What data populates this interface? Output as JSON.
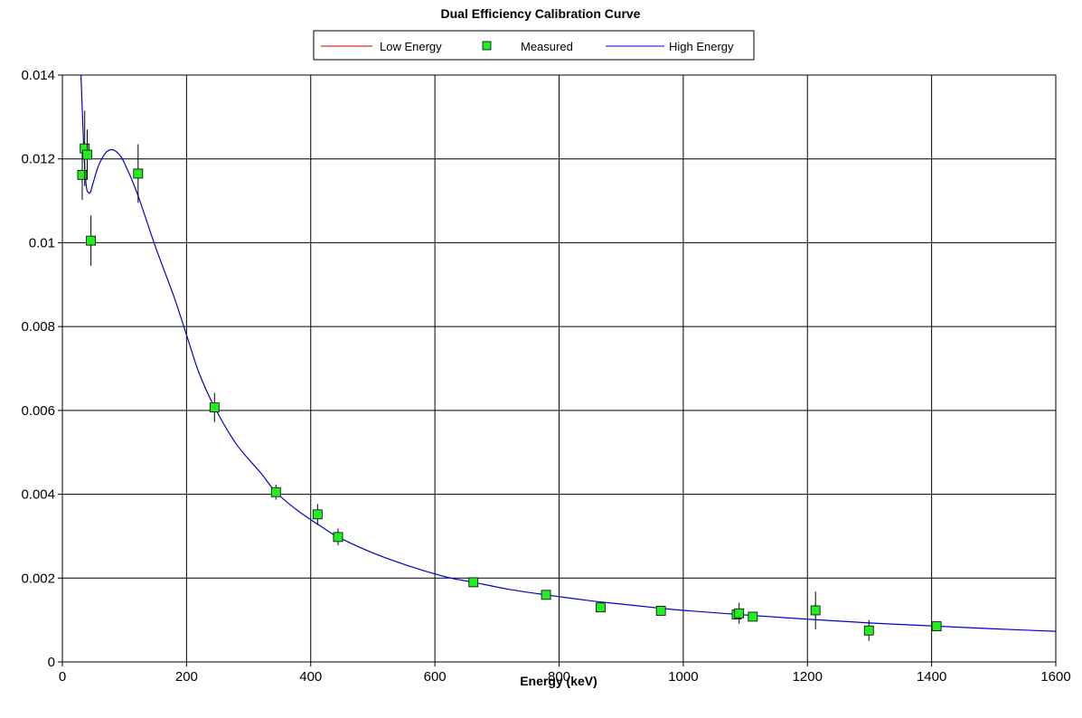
{
  "chart_data": {
    "type": "scatter",
    "title": "Dual Efficiency Calibration Curve",
    "xlabel": "Energy (keV)",
    "ylabel": "",
    "xlim": [
      0,
      1600
    ],
    "ylim": [
      0,
      0.014
    ],
    "x_ticks": [
      0,
      200,
      400,
      600,
      800,
      1000,
      1200,
      1400,
      1600
    ],
    "x_tick_labels": [
      "0",
      "200",
      "400",
      "600",
      "800",
      "1000",
      "1200",
      "1400",
      "1600"
    ],
    "y_ticks": [
      0,
      0.002,
      0.004,
      0.006,
      0.008,
      0.01,
      0.012,
      0.014
    ],
    "y_tick_labels": [
      "0",
      "0.002",
      "0.004",
      "0.006",
      "0.008",
      "0.01",
      "0.012",
      "0.014"
    ],
    "grid": true,
    "legend": {
      "position": "top-center",
      "entries": [
        {
          "label": "Low Energy",
          "kind": "line",
          "color": "#cc0000"
        },
        {
          "label": "Measured",
          "kind": "marker",
          "color": "#00ff00"
        },
        {
          "label": "High Energy",
          "kind": "line",
          "color": "#0000cc"
        }
      ]
    },
    "series": [
      {
        "name": "Measured",
        "kind": "points",
        "marker_color": "#22ee22",
        "points": [
          {
            "x": 32,
            "y": 0.01162,
            "err": 0.0006
          },
          {
            "x": 36,
            "y": 0.01225,
            "err": 0.0009
          },
          {
            "x": 40,
            "y": 0.0121,
            "err": 0.0006
          },
          {
            "x": 46,
            "y": 0.01005,
            "err": 0.0006
          },
          {
            "x": 122,
            "y": 0.01165,
            "err": 0.0007
          },
          {
            "x": 245,
            "y": 0.00607,
            "err": 0.00035
          },
          {
            "x": 344,
            "y": 0.00405,
            "err": 0.00018
          },
          {
            "x": 411,
            "y": 0.00352,
            "err": 0.00025
          },
          {
            "x": 444,
            "y": 0.00298,
            "err": 0.0002
          },
          {
            "x": 662,
            "y": 0.0019,
            "err": 0.0001
          },
          {
            "x": 779,
            "y": 0.0016,
            "err": 0.0001
          },
          {
            "x": 867,
            "y": 0.0013,
            "err": 0.0001
          },
          {
            "x": 964,
            "y": 0.00122,
            "err": 0.0001
          },
          {
            "x": 1086,
            "y": 0.00113,
            "err": 0.0001
          },
          {
            "x": 1090,
            "y": 0.00116,
            "err": 0.00025
          },
          {
            "x": 1112,
            "y": 0.00108,
            "err": 0.0001
          },
          {
            "x": 1213,
            "y": 0.00123,
            "err": 0.00045
          },
          {
            "x": 1299,
            "y": 0.00075,
            "err": 0.00025
          },
          {
            "x": 1408,
            "y": 0.00085,
            "err": 0.0001
          }
        ]
      },
      {
        "name": "High Energy",
        "kind": "line",
        "color": "#0000cc",
        "x": [
          30,
          33,
          36,
          39,
          42,
          45,
          50,
          55,
          60,
          70,
          80,
          90,
          100,
          120,
          150,
          180,
          200,
          220,
          245,
          280,
          320,
          344,
          380,
          420,
          444,
          500,
          560,
          620,
          662,
          720,
          779,
          850,
          900,
          964,
          1000,
          1100,
          1200,
          1300,
          1400,
          1500,
          1600
        ],
        "y": [
          0.014,
          0.0128,
          0.0118,
          0.0113,
          0.0112,
          0.0112,
          0.01145,
          0.0117,
          0.0119,
          0.01215,
          0.01222,
          0.01213,
          0.0119,
          0.0112,
          0.0099,
          0.0087,
          0.0078,
          0.0069,
          0.00608,
          0.0052,
          0.0045,
          0.00405,
          0.0036,
          0.0032,
          0.00298,
          0.0026,
          0.00228,
          0.00202,
          0.0019,
          0.00173,
          0.0016,
          0.00146,
          0.00138,
          0.00128,
          0.00123,
          0.00112,
          0.00102,
          0.00093,
          0.00086,
          0.00079,
          0.00073
        ]
      }
    ]
  }
}
